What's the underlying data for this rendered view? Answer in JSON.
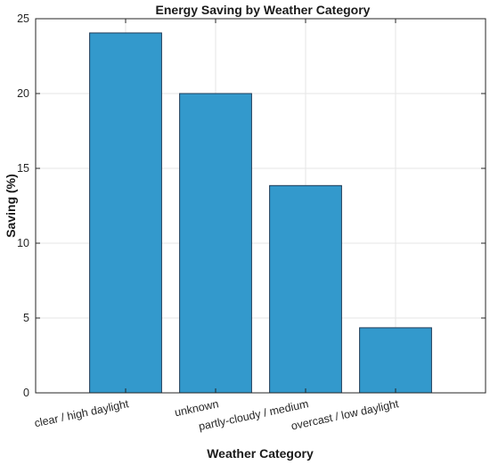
{
  "chart_data": {
    "type": "bar",
    "title": "Energy Saving by Weather Category",
    "xlabel": "Weather Category",
    "ylabel": "Saving (%)",
    "categories": [
      "clear / high daylight",
      "unknown",
      "partly-cloudy / medium",
      "overcast / low daylight"
    ],
    "values": [
      24.05,
      20.0,
      13.85,
      4.35
    ],
    "ylim": [
      0,
      25
    ],
    "yticks": [
      0,
      5,
      10,
      15,
      20,
      25
    ],
    "grid": true,
    "bar_color": "#3399cc",
    "bar_edge_color": "#1f3b57"
  }
}
